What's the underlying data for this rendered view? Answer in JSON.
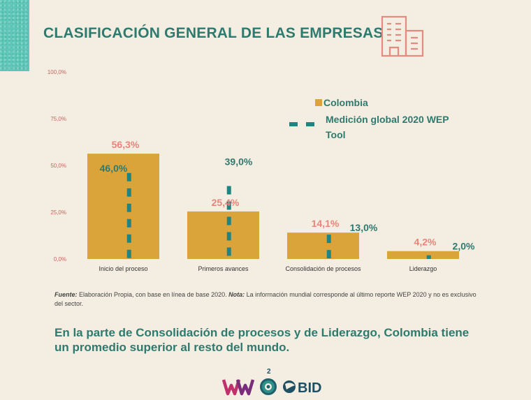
{
  "page": {
    "title": "CLASIFICACIÓN GENERAL DE LAS EMPRESAS",
    "source_label": "Fuente:",
    "source_text": " Elaboración Propia, con base en línea de base 2020. ",
    "note_label": "Nota:",
    "note_text": " La información mundial corresponde al último reporte WEP 2020 y no es exclusivo del sector.",
    "summary": "En la parte de Consolidación de procesos y de Liderazgo, Colombia tiene un promedio superior al resto del mundo.",
    "page_number": "2",
    "logo_bid": "BID"
  },
  "colors": {
    "bar": "#dba43a",
    "dash": "#1f8582",
    "bar_label": "#e8857a",
    "dash_label": "#2f7a6e",
    "title": "#2f7a6e",
    "icon": "#e58a7e"
  },
  "icons": [
    "building-icon",
    "ww-logo",
    "globe-emblem-logo",
    "bid-logo"
  ],
  "chart_data": {
    "type": "bar",
    "categories": [
      "Inicio del proceso",
      "Primeros avances",
      "Consolidación de procesos",
      "Liderazgo"
    ],
    "series": [
      {
        "name": "Colombia",
        "values": [
          56.3,
          25.4,
          14.1,
          4.2
        ],
        "labels": [
          "56,3%",
          "25,4%",
          "14,1%",
          "4,2%"
        ]
      },
      {
        "name": "Medición global 2020 WEP Tool",
        "values": [
          46.0,
          39.0,
          13.0,
          2.0
        ],
        "labels": [
          "46,0%",
          "39,0%",
          "13,0%",
          "2,0%"
        ]
      }
    ],
    "yticks": [
      0,
      25,
      50,
      75,
      100
    ],
    "ytick_labels": [
      "0,0%",
      "25,0%",
      "50,0%",
      "75,0%",
      "100,0%"
    ],
    "ylim": [
      0,
      100
    ],
    "legend_position": "top-right",
    "grid": false
  }
}
